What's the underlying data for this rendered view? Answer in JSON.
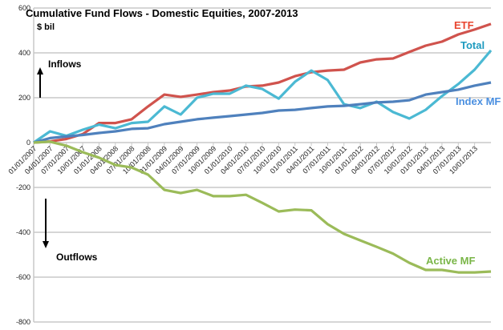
{
  "chart_data": {
    "type": "line",
    "title": "Cumulative Fund Flows - Domestic Equities, 2007-2013",
    "ylabel": "$ bil",
    "xlabel": "",
    "ylim": [
      -800,
      600
    ],
    "yticks": [
      -800,
      -600,
      -400,
      -200,
      0,
      200,
      400,
      600
    ],
    "grid": true,
    "x": [
      "01/01/2007",
      "04/01/2007",
      "07/01/2007",
      "10/01/2007",
      "01/01/2008",
      "04/01/2008",
      "07/01/2008",
      "10/01/2008",
      "01/01/2009",
      "04/01/2009",
      "07/01/2009",
      "10/01/2009",
      "01/01/2010",
      "04/01/2010",
      "07/01/2010",
      "10/01/2010",
      "01/01/2011",
      "04/01/2011",
      "07/01/2011",
      "10/01/2011",
      "01/01/2012",
      "04/01/2012",
      "07/01/2012",
      "10/01/2012",
      "01/01/2013",
      "04/01/2013",
      "07/01/2013",
      "10/01/2013",
      "12/31/2013"
    ],
    "xtick_labels": [
      "01/01/2007",
      "04/01/2007",
      "07/01/2007",
      "10/01/2007",
      "01/01/2008",
      "04/01/2008",
      "07/01/2008",
      "10/01/2008",
      "01/01/2009",
      "04/01/2009",
      "07/01/2009",
      "10/01/2009",
      "01/01/2010",
      "04/01/2010",
      "07/01/2010",
      "10/01/2010",
      "01/01/2011",
      "04/01/2011",
      "07/01/2011",
      "10/01/2011",
      "01/01/2012",
      "04/01/2012",
      "07/01/2012",
      "10/01/2012",
      "01/01/2013",
      "04/01/2013",
      "07/01/2013",
      "10/01/2013"
    ],
    "series": [
      {
        "name": "ETF",
        "color": "#d0534d",
        "label_color": "#e8452f",
        "values": [
          0,
          5,
          16,
          38,
          87,
          87,
          104,
          161,
          214,
          204,
          214,
          225,
          232,
          250,
          254,
          268,
          296,
          314,
          321,
          325,
          357,
          371,
          375,
          404,
          432,
          450,
          482,
          504,
          529
        ]
      },
      {
        "name": "Total",
        "color": "#4bb9d3",
        "label_color": "#1f9bbf",
        "values": [
          0,
          50,
          30,
          57,
          80,
          64,
          87,
          93,
          161,
          125,
          200,
          218,
          218,
          254,
          239,
          196,
          271,
          321,
          279,
          171,
          154,
          182,
          136,
          107,
          146,
          207,
          261,
          325,
          411
        ]
      },
      {
        "name": "Index MF",
        "color": "#4f81bd",
        "label_color": "#4a8fe0",
        "values": [
          0,
          20,
          27,
          34,
          43,
          50,
          61,
          64,
          82,
          93,
          104,
          111,
          118,
          125,
          132,
          143,
          146,
          154,
          161,
          164,
          171,
          179,
          182,
          189,
          214,
          225,
          236,
          254,
          268
        ]
      },
      {
        "name": "Active MF",
        "color": "#9bbb59",
        "label_color": "#7ab648",
        "values": [
          0,
          4,
          -14,
          -43,
          -67,
          -100,
          -111,
          -143,
          -211,
          -225,
          -211,
          -239,
          -239,
          -233,
          -269,
          -307,
          -299,
          -302,
          -364,
          -407,
          -436,
          -465,
          -495,
          -536,
          -568,
          -568,
          -579,
          -579,
          -575
        ]
      }
    ],
    "annotations": {
      "inflows": "Inflows",
      "outflows": "Outflows"
    }
  }
}
